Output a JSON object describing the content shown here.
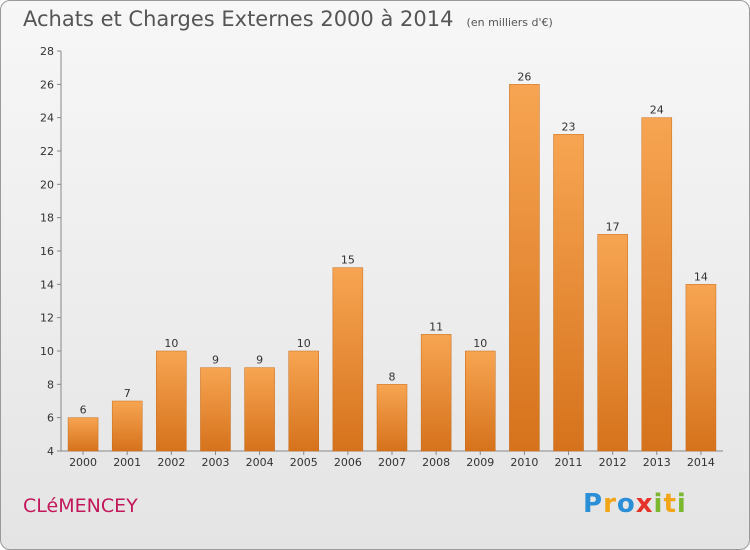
{
  "header": {
    "title": "Achats et Charges Externes 2000 à 2014",
    "unit": "(en milliers d'€)"
  },
  "footer": {
    "commune": "CLéMENCEY",
    "brand_letters": [
      {
        "char": "P",
        "color": "#2a8fd6"
      },
      {
        "char": "r",
        "color": "#f2a516"
      },
      {
        "char": "o",
        "color": "#2a8fd6"
      },
      {
        "char": "x",
        "color": "#e6332a"
      },
      {
        "char": "i",
        "color": "#7cb82f"
      },
      {
        "char": "t",
        "color": "#f2a516"
      },
      {
        "char": "i",
        "color": "#7cb82f"
      }
    ]
  },
  "chart_data": {
    "type": "bar",
    "title": "Achats et Charges Externes 2000 à 2014",
    "subtitle": "(en milliers d'€)",
    "categories": [
      "2000",
      "2001",
      "2002",
      "2003",
      "2004",
      "2005",
      "2006",
      "2007",
      "2008",
      "2009",
      "2010",
      "2011",
      "2012",
      "2013",
      "2014"
    ],
    "values": [
      6,
      7,
      10,
      9,
      9,
      10,
      15,
      8,
      11,
      10,
      26,
      23,
      17,
      24,
      14
    ],
    "ylim": [
      4,
      28
    ],
    "yticks": [
      4,
      6,
      8,
      10,
      12,
      14,
      16,
      18,
      20,
      22,
      24,
      26,
      28
    ],
    "grid": false,
    "bar_color": "#f0943c",
    "bar_color_dark": "#d9731c"
  }
}
